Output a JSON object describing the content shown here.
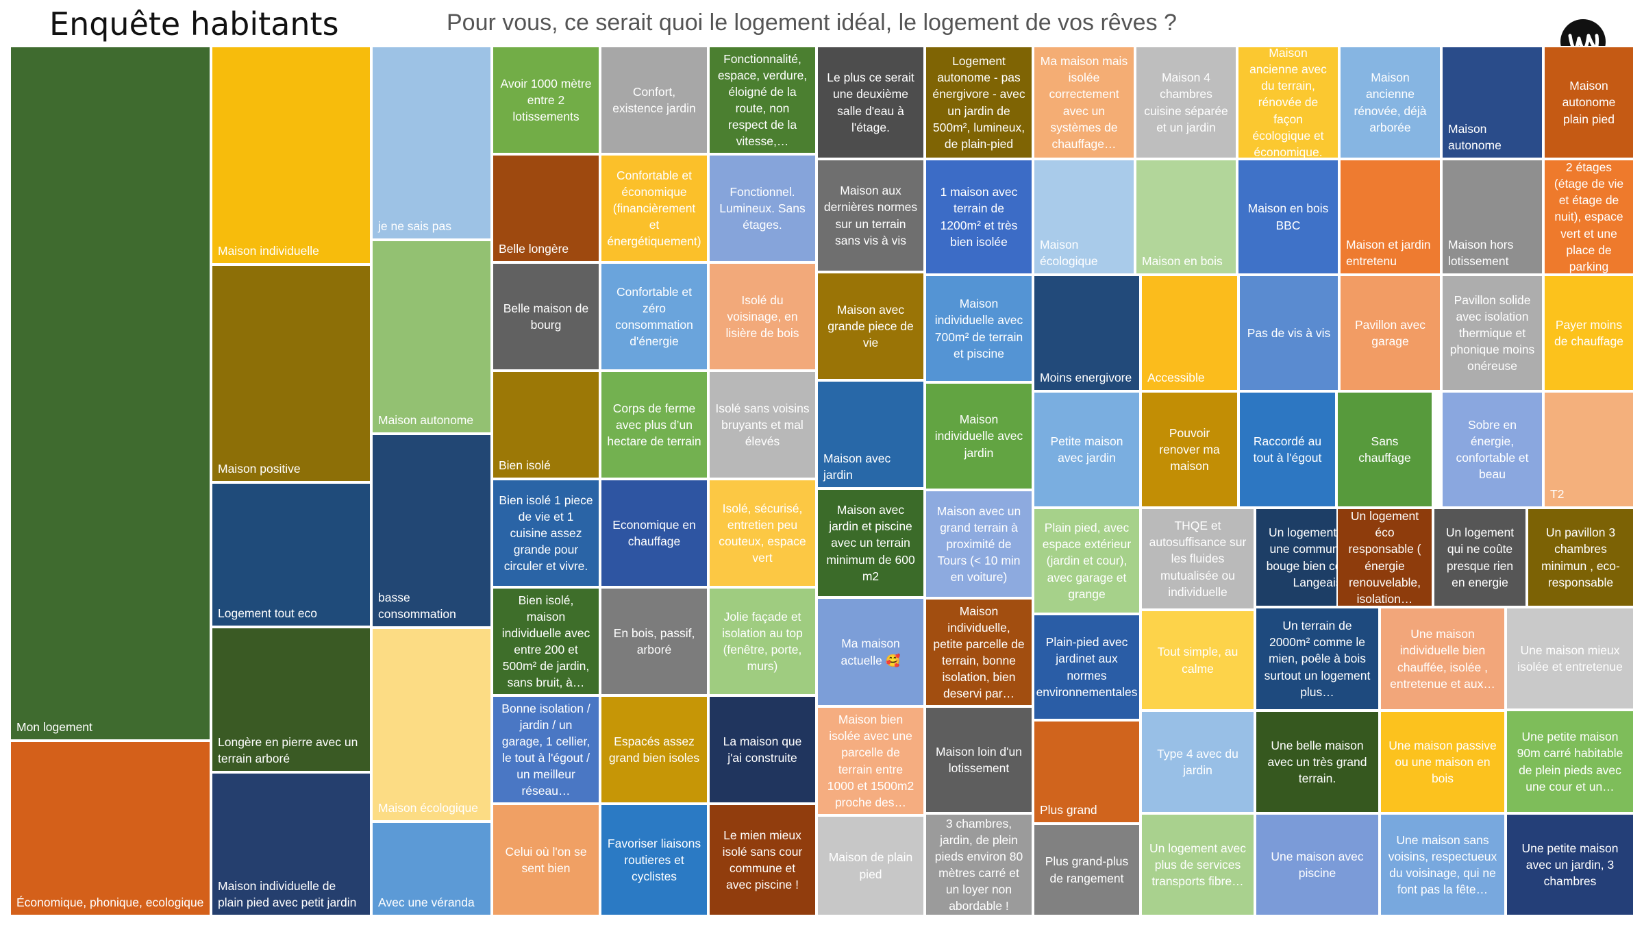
{
  "header": {
    "title": "Enquête habitants",
    "question": "Pour vous, ce serait quoi le logement idéal, le logement de vos rêves ?"
  },
  "chart_data": {
    "type": "treemap",
    "title": "Pour vous, ce serait quoi le logement idéal, le logement de vos rêves ?",
    "items": [
      {
        "label": "Mon logement",
        "color": "#3f6b2f"
      },
      {
        "label": "Économique, phonique, ecologique",
        "color": "#d4601a"
      },
      {
        "label": "Maison individuelle",
        "color": "#f7bc0c"
      },
      {
        "label": "Maison positive",
        "color": "#8d6f07"
      },
      {
        "label": "Logement tout eco",
        "color": "#1f4b7a"
      },
      {
        "label": "Longère en pierre avec un terrain arboré",
        "color": "#3a5a24"
      },
      {
        "label": "Maison individuelle de plain pied avec petit jardin",
        "color": "#253f6e"
      },
      {
        "label": "je ne sais pas",
        "color": "#9dc2e5"
      },
      {
        "label": "Maison autonome",
        "color": "#93c172"
      },
      {
        "label": "basse consommation",
        "color": "#224774"
      },
      {
        "label": "Maison écologique",
        "color": "#fcdc84"
      },
      {
        "label": "Avec une véranda",
        "color": "#5c9ad6"
      },
      {
        "label": "Avoir 1000 mètre entre 2 lotissements",
        "color": "#72ad47"
      },
      {
        "label": "Belle longère",
        "color": "#9e490f"
      },
      {
        "label": "Belle maison de bourg",
        "color": "#616161"
      },
      {
        "label": "Bien isolé",
        "color": "#9c7806"
      },
      {
        "label": "Bien isolé 1 piece de vie et 1 cuisine assez grande pour circuler et vivre.",
        "color": "#2a64a6"
      },
      {
        "label": "Bien isolé, maison individuelle avec entre 200 et 500m² de jardin, sans bruit, à…",
        "color": "#3e6e2a"
      },
      {
        "label": "Bonne isolation / jardin / un garage, 1 cellier, le tout à l'égout / un meilleur réseau…",
        "color": "#4a77c4"
      },
      {
        "label": "Celui où l'on se sent bien",
        "color": "#f0a064"
      },
      {
        "label": "Confort, existence jardin",
        "color": "#a7a7a7"
      },
      {
        "label": "Confortable et économique (financièrement et énergétiquement)",
        "color": "#fbc02a"
      },
      {
        "label": "Confortable et zéro consommation d'énergie",
        "color": "#6aa4dc"
      },
      {
        "label": "Corps de ferme avec plus d’un hectare de terrain",
        "color": "#73b150"
      },
      {
        "label": "Economique en chauffage",
        "color": "#2e55a2"
      },
      {
        "label": "En bois, passif, arboré",
        "color": "#7c7c7c"
      },
      {
        "label": "Espacés  assez grand bien isoles",
        "color": "#c69606"
      },
      {
        "label": "Favoriser liaisons routieres et cyclistes",
        "color": "#2b7ac4"
      },
      {
        "label": "Fonctionnalité, espace, verdure, éloigné de la route, non respect de la vitesse,…",
        "color": "#4b7f30"
      },
      {
        "label": "Fonctionnel. Lumineux. Sans étages.",
        "color": "#86a4da"
      },
      {
        "label": "Isolé du voisinage, en lisière de bois",
        "color": "#f2a97a"
      },
      {
        "label": "Isolé sans voisins bruyants et mal élevés",
        "color": "#b8b8b8"
      },
      {
        "label": "Isolé, sécurisé, entretien peu couteux, espace vert",
        "color": "#fcc844"
      },
      {
        "label": "Jolie façade et isolation au top (fenêtre, porte, murs)",
        "color": "#9fcc80"
      },
      {
        "label": "La maison que j'ai construite",
        "color": "#20355e"
      },
      {
        "label": "Le mien mieux isolé sans cour commune et avec piscine !",
        "color": "#913d0d"
      },
      {
        "label": "Le plus ce serait une deuxième salle d'eau à l'étage.",
        "color": "#4d4d4d"
      },
      {
        "label": "Maison aux dernières normes sur un terrain sans vis à vis",
        "color": "#6f6f6f"
      },
      {
        "label": "Maison avec grande piece de vie",
        "color": "#9a7406"
      },
      {
        "label": "Maison avec jardin",
        "color": "#2868a8"
      },
      {
        "label": "Maison avec jardin et piscine avec un terrain minimum de 600 m2",
        "color": "#3b6b29"
      },
      {
        "label": "Ma maison actuelle 🥰",
        "color": "#7c9ed8"
      },
      {
        "label": "Maison bien isolée avec une parcelle de terrain entre 1000 et 1500m2 proche des…",
        "color": "#f5ad80"
      },
      {
        "label": "Maison de plain pied",
        "color": "#c7c7c7"
      },
      {
        "label": "Logement autonome - pas énergivore - avec un jardin de 500m², lumineux, de plain-pied",
        "color": "#7f6404"
      },
      {
        "label": "1 maison avec terrain de 1200m² et très bien isolée",
        "color": "#3c6cc6"
      },
      {
        "label": "Maison individuelle avec 700m² de terrain et piscine",
        "color": "#5494d4"
      },
      {
        "label": "Maison individuelle avec jardin",
        "color": "#62a442"
      },
      {
        "label": "Maison avec un grand terrain à proximité de Tours (< 10 min en voiture)",
        "color": "#8daadf"
      },
      {
        "label": "Maison individuelle, petite parcelle de terrain, bonne isolation, bien deservi par…",
        "color": "#a24e10"
      },
      {
        "label": "Maison loin d'un lotissement",
        "color": "#5e5e5e"
      },
      {
        "label": "3 chambres, jardin, de plein pieds environ 80 mètres carré et un loyer non abordable !",
        "color": "#9b9b9b"
      },
      {
        "label": "Ma maison mais isolée correctement avec un systèmes de chauffage…",
        "color": "#f4ad74"
      },
      {
        "label": "Maison écologique",
        "color": "#a9cbea"
      },
      {
        "label": "Moins energivore",
        "color": "#224a7a"
      },
      {
        "label": "Petite maison avec jardin",
        "color": "#7aaee0"
      },
      {
        "label": "Plain pied, avec espace extérieur (jardin et cour), avec garage et grange",
        "color": "#a6d18a"
      },
      {
        "label": "Plain-pied avec jardinet  aux normes environnementales",
        "color": "#2a5da6"
      },
      {
        "label": "Plus grand",
        "color": "#d0641d"
      },
      {
        "label": "Plus grand-plus de rangement",
        "color": "#818181"
      },
      {
        "label": "Maison 4 chambres cuisine séparée et un jardin",
        "color": "#bebebe"
      },
      {
        "label": "Maison en bois",
        "color": "#b2d69a"
      },
      {
        "label": "Accessible",
        "color": "#fbbc1c"
      },
      {
        "label": "Pouvoir renover ma maison",
        "color": "#c28e05"
      },
      {
        "label": "THQE et autosuffisance sur les fluides mutualisée ou individuelle",
        "color": "#bababa"
      },
      {
        "label": "Tout simple, au calme",
        "color": "#fdd34a"
      },
      {
        "label": "Type 4 avec du jardin",
        "color": "#98bfe6"
      },
      {
        "label": "Un logement avec plus de services transports fibre…",
        "color": "#a9d18e"
      },
      {
        "label": "Maison ancienne avec du terrain, rénovée de façon écologique et économique.",
        "color": "#fbc830"
      },
      {
        "label": "Maison en bois BBC",
        "color": "#3f72c8"
      },
      {
        "label": "Pas de vis à vis",
        "color": "#5a8bd0"
      },
      {
        "label": "Raccordé au tout à l'égout",
        "color": "#2d77c2"
      },
      {
        "label": "Un logement dans une commune qui bouge bien comme Langeais",
        "color": "#1d3e66"
      },
      {
        "label": "Un terrain de 2000m² comme le mien, poêle à bois surtout un logement plus…",
        "color": "#1e4a7e"
      },
      {
        "label": "Une belle maison avec un très grand terrain.",
        "color": "#36581f"
      },
      {
        "label": "Une maison avec piscine",
        "color": "#7b9bd8"
      },
      {
        "label": "Maison ancienne rénovée, déjà arborée",
        "color": "#86b5e2"
      },
      {
        "label": "Maison et jardin entretenu",
        "color": "#ee7b30"
      },
      {
        "label": "Pavillon avec garage",
        "color": "#f29c64"
      },
      {
        "label": "Sans chauffage",
        "color": "#579a3c"
      },
      {
        "label": "Un logement éco responsable ( énergie renouvelable, isolation…",
        "color": "#8e3c0c"
      },
      {
        "label": "Une maison individuelle  bien chauffée, isolée , entretenue  et aux…",
        "color": "#f2a67a"
      },
      {
        "label": "Une maison passive ou une maison en bois",
        "color": "#fcc21e"
      },
      {
        "label": "Une maison sans voisins, respectueux du voisinage, qui ne font pas la fête…",
        "color": "#78a8de"
      },
      {
        "label": "Maison autonome",
        "color": "#2a4c8a"
      },
      {
        "label": "Maison hors lotissement",
        "color": "#8f8f8f"
      },
      {
        "label": "Pavillon solide avec isolation thermique et phonique moins onéreuse",
        "color": "#adadad"
      },
      {
        "label": "Sobre en énergie, confortable et beau",
        "color": "#8aa7df"
      },
      {
        "label": "Un logement qui ne coûte presque rien en energie",
        "color": "#565656"
      },
      {
        "label": "Une maison mieux isolée et entretenue",
        "color": "#c9c9c9"
      },
      {
        "label": "Une petite maison 90m carré habitable de plein pieds avec une cour et un…",
        "color": "#7ebd5a"
      },
      {
        "label": "Une petite maison avec un jardin, 3 chambres",
        "color": "#243f78"
      },
      {
        "label": "Maison autonome plain pied",
        "color": "#c55a14"
      },
      {
        "label": "2 étages (étage de vie et étage de nuit), espace vert et une place de parking",
        "color": "#ee7a2c"
      },
      {
        "label": "Payer moins de chauffage",
        "color": "#fcc21c"
      },
      {
        "label": "T2",
        "color": "#f4b07c"
      },
      {
        "label": "Un pavillon 3 chambres minimun , eco-responsable",
        "color": "#7c6205"
      }
    ]
  }
}
